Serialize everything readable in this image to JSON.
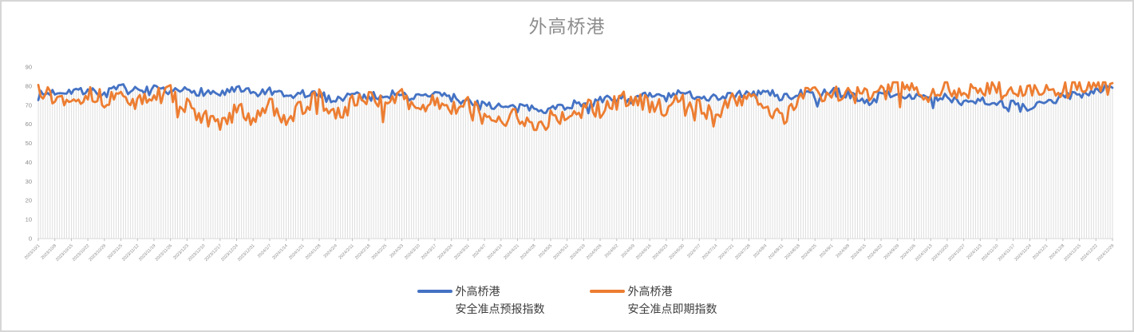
{
  "chart_data": {
    "type": "line",
    "title": "外高桥港",
    "ylim": [
      0,
      90
    ],
    "y_ticks": [
      0,
      10,
      20,
      30,
      40,
      50,
      60,
      70,
      80,
      90
    ],
    "days_per_label": 7,
    "grid": "vertical-daily-drop-lines",
    "legend_position": "bottom",
    "x_labels_weekly": [
      "2023/10/1",
      "2023/10/8",
      "2023/10/15",
      "2023/10/22",
      "2023/10/29",
      "2023/11/5",
      "2023/11/12",
      "2023/11/19",
      "2023/11/26",
      "2023/12/3",
      "2023/12/10",
      "2023/12/17",
      "2023/12/24",
      "2023/12/31",
      "2024/1/7",
      "2024/1/14",
      "2024/1/21",
      "2024/1/28",
      "2024/2/4",
      "2024/2/11",
      "2024/2/18",
      "2024/2/25",
      "2024/3/3",
      "2024/3/10",
      "2024/3/17",
      "2024/3/24",
      "2024/3/31",
      "2024/4/7",
      "2024/4/14",
      "2024/4/21",
      "2024/4/28",
      "2024/5/5",
      "2024/5/12",
      "2024/5/19",
      "2024/5/26",
      "2024/6/2",
      "2024/6/9",
      "2024/6/16",
      "2024/6/23",
      "2024/6/30",
      "2024/7/7",
      "2024/7/14",
      "2024/7/21",
      "2024/7/28",
      "2024/8/4",
      "2024/8/11",
      "2024/8/18",
      "2024/8/25",
      "2024/9/1",
      "2024/9/8",
      "2024/9/15",
      "2024/9/22",
      "2024/9/29",
      "2024/10/6",
      "2024/10/13",
      "2024/10/20",
      "2024/10/27",
      "2024/11/3",
      "2024/11/10",
      "2024/11/17",
      "2024/11/24",
      "2024/12/1",
      "2024/12/8",
      "2024/12/15",
      "2024/12/22",
      "2024/12/29"
    ],
    "series": [
      {
        "name": "外高桥港 安全准点预报指数",
        "name_lines": [
          "外高桥港",
          "安全准点预报指数"
        ],
        "color": "#4472C4",
        "weekly_values": [
          75,
          77,
          78,
          77,
          76,
          79,
          77,
          78,
          76,
          78,
          77,
          76,
          78,
          76,
          77,
          74,
          76,
          75,
          73,
          76,
          74,
          76,
          75,
          74,
          76,
          74,
          72,
          71,
          69,
          68,
          69,
          68,
          70,
          71,
          72,
          74,
          73,
          75,
          74,
          76,
          75,
          74,
          76,
          75,
          77,
          74,
          76,
          75,
          77,
          76,
          71,
          75,
          77,
          74,
          73,
          74,
          72,
          73,
          71,
          70,
          67,
          72,
          74,
          76,
          78,
          80
        ],
        "noise_amplitude": 2.4,
        "dip_chance": 0.03,
        "dip_depth": 5,
        "min": 64,
        "max": 81,
        "seed": 7
      },
      {
        "name": "外高桥港 安全准点即期指数",
        "name_lines": [
          "外高桥港",
          "安全准点即期指数"
        ],
        "color": "#ED7D31",
        "weekly_values": [
          80,
          73,
          74,
          76,
          73,
          75,
          71,
          74,
          77,
          69,
          63,
          60,
          68,
          63,
          71,
          63,
          69,
          74,
          64,
          71,
          75,
          72,
          74,
          69,
          73,
          67,
          71,
          63,
          60,
          65,
          58,
          63,
          66,
          70,
          67,
          72,
          74,
          70,
          68,
          73,
          70,
          62,
          73,
          75,
          69,
          62,
          74,
          77,
          74,
          78,
          76,
          79,
          80,
          78,
          76,
          79,
          77,
          80,
          78,
          76,
          79,
          77,
          78,
          79,
          80,
          80
        ],
        "noise_amplitude": 4.6,
        "dip_chance": 0.06,
        "dip_depth": 8,
        "min": 57,
        "max": 82,
        "seed": 13
      }
    ],
    "colors": {
      "drop_line": "#dbdbdb",
      "axis_line": "#d9d9d9",
      "tick_mark": "#bfbfbf",
      "axis_label": "#8c8c8c",
      "title": "#8d8d8d",
      "legend_text": "#3d3d3d",
      "frame_border": "#d6d6d6"
    }
  }
}
